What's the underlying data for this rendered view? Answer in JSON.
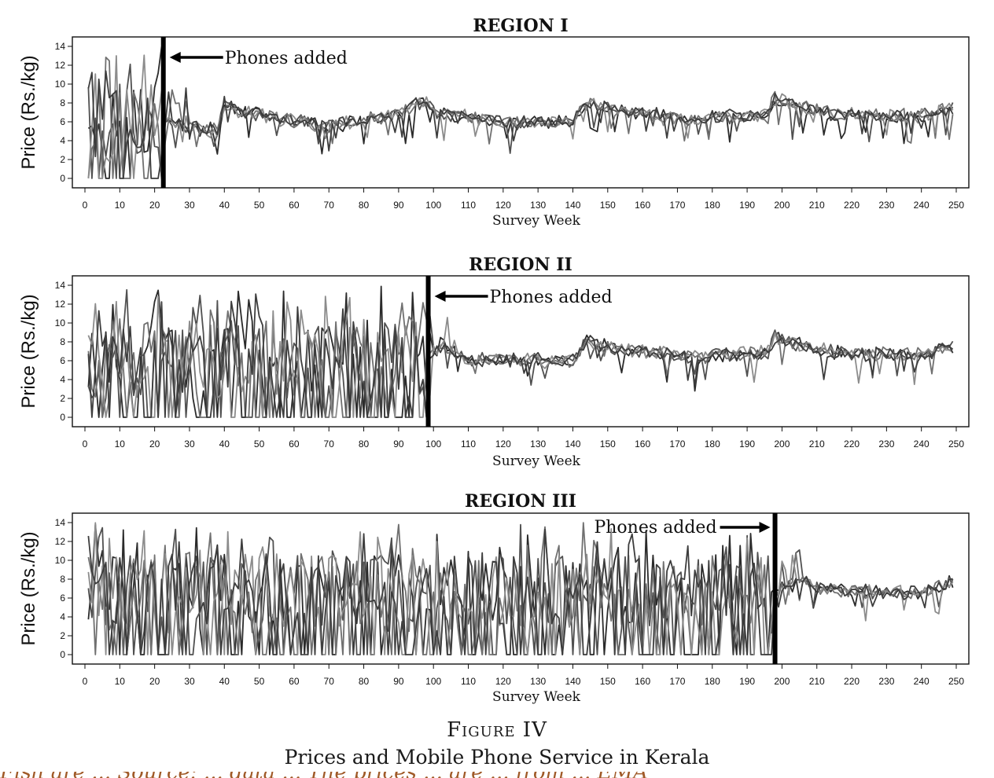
{
  "figure": {
    "number": "Figure IV",
    "title": "Prices and Mobile Phone Service in Kerala",
    "cut_off_text": "Fish are ... Source: ... data ... The prices ... are ... from ... EMA"
  },
  "chart_data": [
    {
      "type": "line",
      "title": "REGION I",
      "xlabel": "Survey Week",
      "ylabel": "Price (Rs./kg)",
      "xlim": [
        0,
        250
      ],
      "ylim": [
        -1,
        15
      ],
      "x_ticks": [
        0,
        10,
        20,
        30,
        40,
        50,
        60,
        70,
        80,
        90,
        100,
        110,
        120,
        130,
        140,
        150,
        160,
        170,
        180,
        190,
        200,
        210,
        220,
        230,
        240,
        250
      ],
      "y_ticks": [
        0,
        2,
        4,
        6,
        8,
        10,
        12,
        14
      ],
      "grid": false,
      "legend": "none",
      "event": {
        "week": 22.5,
        "label": "Phones added",
        "side": "right"
      },
      "n_markets": 5,
      "series_colors": [
        "#2b2b2b",
        "#505050",
        "#707070",
        "#8c8c8c",
        "#3d3d3d"
      ],
      "noise_factor_before": 1.0,
      "noise_factor_after": 0.22,
      "level_path": [
        {
          "week": 1,
          "price": 6.0
        },
        {
          "week": 22,
          "price": 6.0
        },
        {
          "week": 38,
          "price": 5.0
        },
        {
          "week": 40,
          "price": 8.0
        },
        {
          "week": 44,
          "price": 7.2
        },
        {
          "week": 55,
          "price": 6.4
        },
        {
          "week": 70,
          "price": 5.6
        },
        {
          "week": 90,
          "price": 6.8
        },
        {
          "week": 97,
          "price": 8.2
        },
        {
          "week": 101,
          "price": 7.0
        },
        {
          "week": 120,
          "price": 5.9
        },
        {
          "week": 140,
          "price": 6.0
        },
        {
          "week": 144,
          "price": 8.0
        },
        {
          "week": 152,
          "price": 7.2
        },
        {
          "week": 175,
          "price": 6.3
        },
        {
          "week": 195,
          "price": 6.8
        },
        {
          "week": 198,
          "price": 8.4
        },
        {
          "week": 206,
          "price": 7.6
        },
        {
          "week": 215,
          "price": 6.8
        },
        {
          "week": 240,
          "price": 6.6
        },
        {
          "week": 250,
          "price": 7.6
        }
      ]
    },
    {
      "type": "line",
      "title": "REGION II",
      "xlabel": "Survey Week",
      "ylabel": "Price (Rs./kg)",
      "xlim": [
        0,
        250
      ],
      "ylim": [
        -1,
        15
      ],
      "x_ticks": [
        0,
        10,
        20,
        30,
        40,
        50,
        60,
        70,
        80,
        90,
        100,
        110,
        120,
        130,
        140,
        150,
        160,
        170,
        180,
        190,
        200,
        210,
        220,
        230,
        240,
        250
      ],
      "y_ticks": [
        0,
        2,
        4,
        6,
        8,
        10,
        12,
        14
      ],
      "grid": false,
      "legend": "none",
      "event": {
        "week": 98.5,
        "label": "Phones added",
        "side": "right"
      },
      "n_markets": 5,
      "series_colors": [
        "#2b2b2b",
        "#505050",
        "#707070",
        "#8c8c8c",
        "#3d3d3d"
      ],
      "noise_factor_before": 1.0,
      "noise_factor_after": 0.22,
      "level_path": [
        {
          "week": 1,
          "price": 6.2
        },
        {
          "week": 98,
          "price": 6.2
        },
        {
          "week": 103,
          "price": 7.4
        },
        {
          "week": 110,
          "price": 6.2
        },
        {
          "week": 140,
          "price": 6.0
        },
        {
          "week": 144,
          "price": 8.1
        },
        {
          "week": 152,
          "price": 7.3
        },
        {
          "week": 175,
          "price": 6.4
        },
        {
          "week": 195,
          "price": 6.9
        },
        {
          "week": 198,
          "price": 8.5
        },
        {
          "week": 206,
          "price": 7.6
        },
        {
          "week": 215,
          "price": 6.8
        },
        {
          "week": 240,
          "price": 6.7
        },
        {
          "week": 250,
          "price": 7.6
        }
      ]
    },
    {
      "type": "line",
      "title": "REGION III",
      "xlabel": "Survey Week",
      "ylabel": "Price (Rs./kg)",
      "xlim": [
        0,
        250
      ],
      "ylim": [
        -1,
        15
      ],
      "x_ticks": [
        0,
        10,
        20,
        30,
        40,
        50,
        60,
        70,
        80,
        90,
        100,
        110,
        120,
        130,
        140,
        150,
        160,
        170,
        180,
        190,
        200,
        210,
        220,
        230,
        240,
        250
      ],
      "y_ticks": [
        0,
        2,
        4,
        6,
        8,
        10,
        12,
        14
      ],
      "grid": false,
      "legend": "none",
      "event": {
        "week": 198,
        "label": "Phones added",
        "side": "left"
      },
      "n_markets": 5,
      "series_colors": [
        "#2b2b2b",
        "#505050",
        "#707070",
        "#8c8c8c",
        "#3d3d3d"
      ],
      "noise_factor_before": 1.0,
      "noise_factor_after": 0.22,
      "level_path": [
        {
          "week": 1,
          "price": 6.5
        },
        {
          "week": 197,
          "price": 6.5
        },
        {
          "week": 205,
          "price": 8.0
        },
        {
          "week": 212,
          "price": 6.8
        },
        {
          "week": 240,
          "price": 6.6
        },
        {
          "week": 250,
          "price": 7.8
        }
      ]
    }
  ]
}
